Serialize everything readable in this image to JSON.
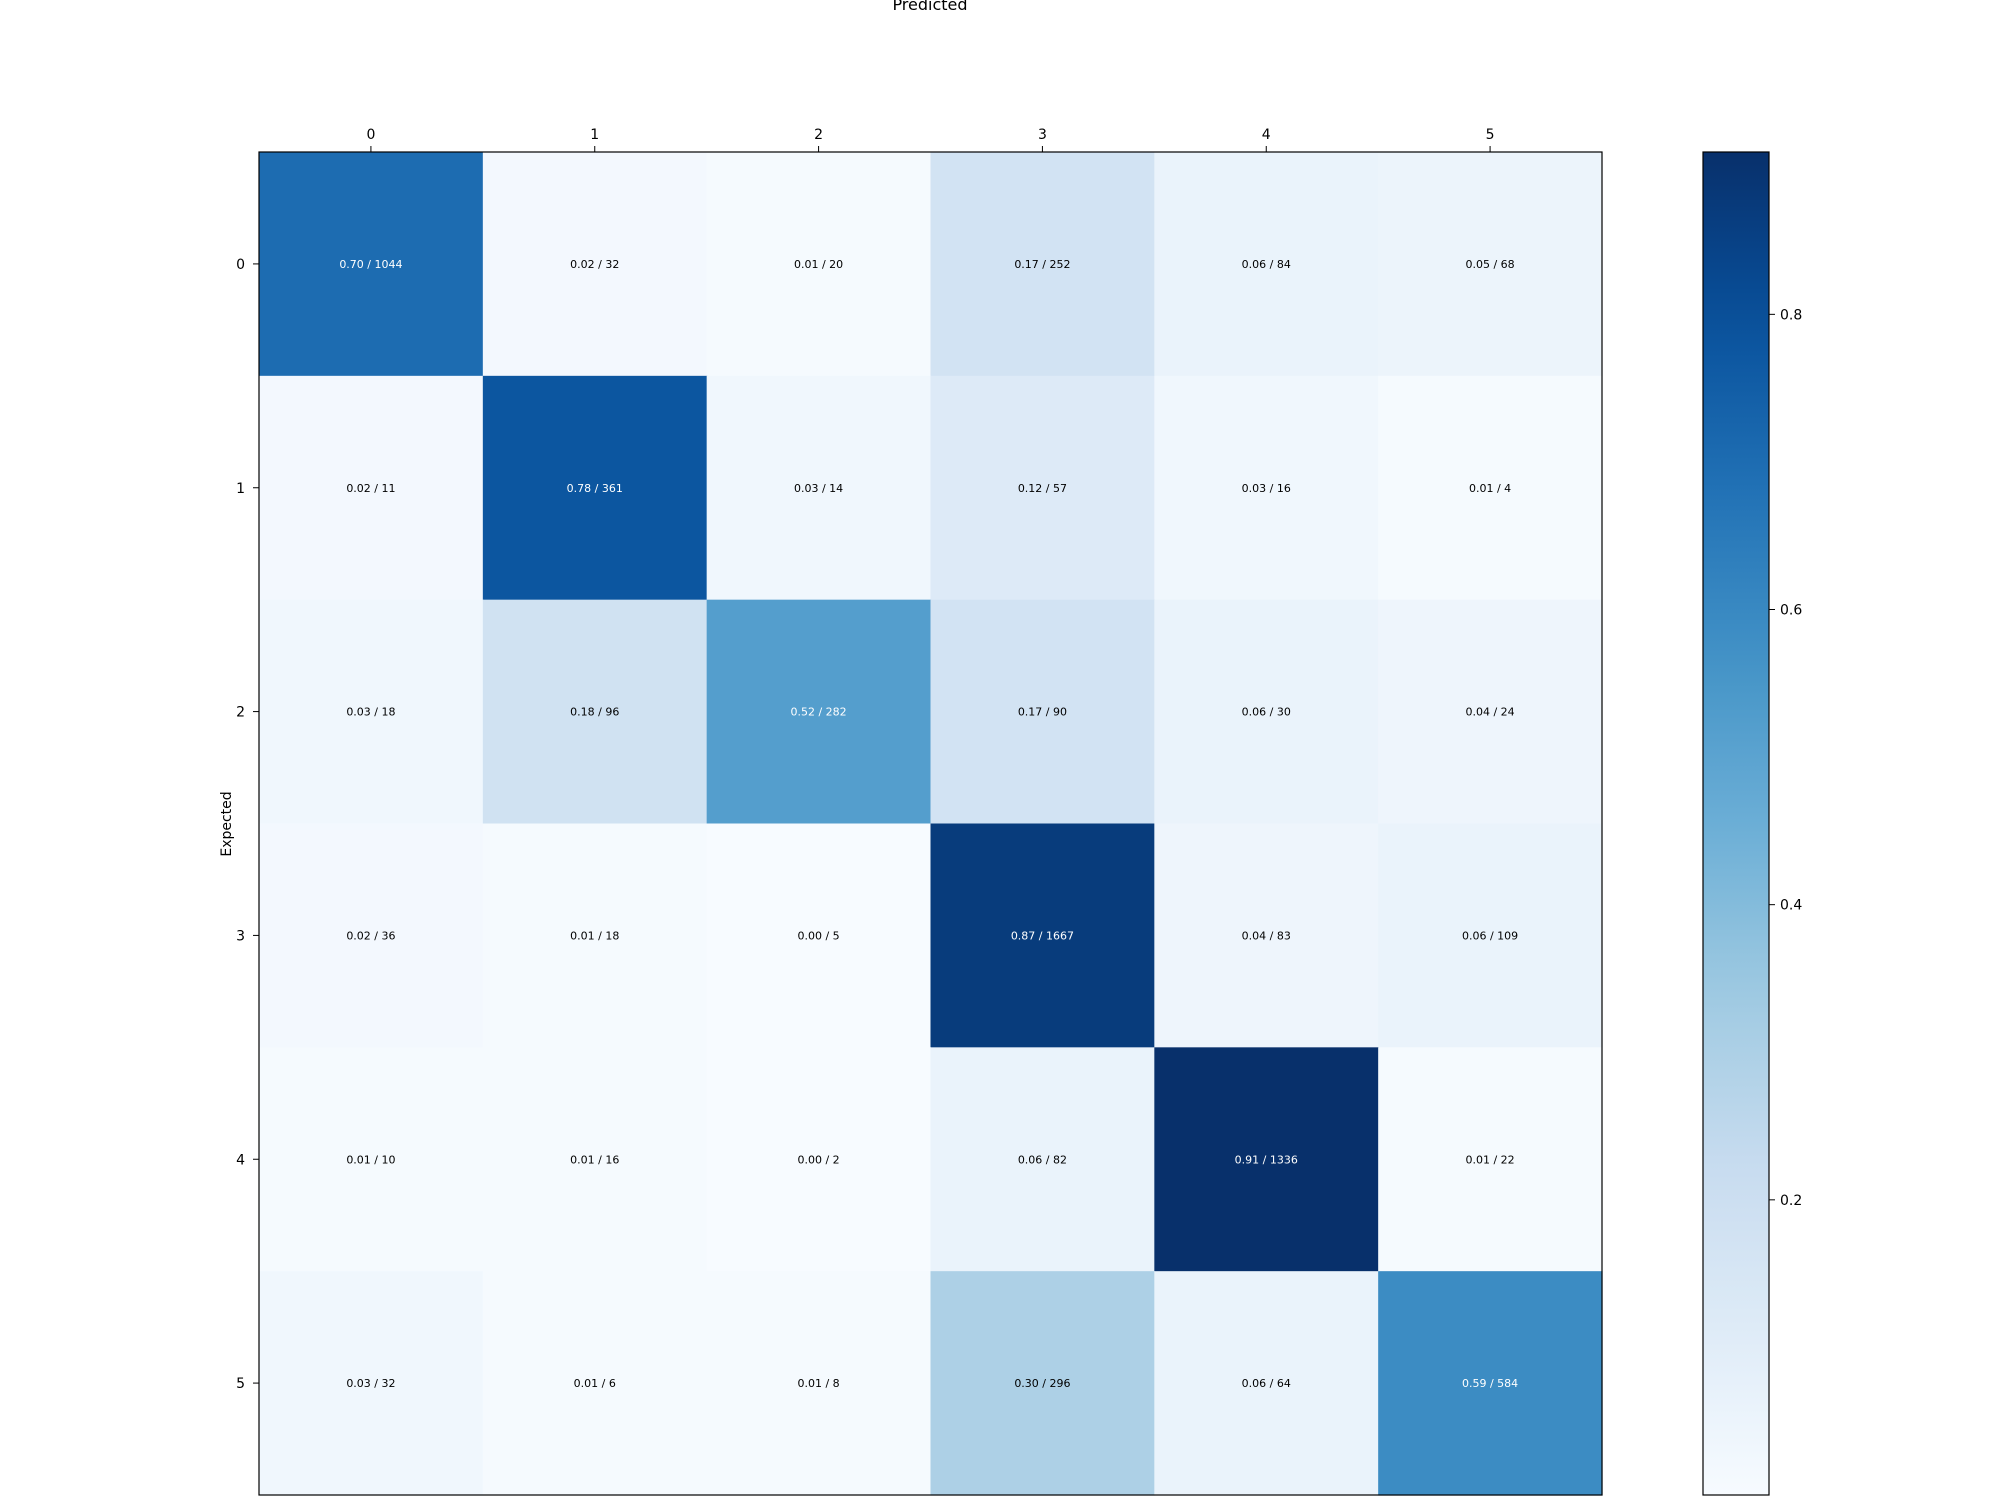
{
  "chart_data": {
    "type": "heatmap",
    "title": "",
    "xlabel": "Predicted",
    "ylabel": "Expected",
    "x_categories": [
      "0",
      "1",
      "2",
      "3",
      "4",
      "5"
    ],
    "y_categories": [
      "0",
      "1",
      "2",
      "3",
      "4",
      "5"
    ],
    "ratios": [
      [
        0.7,
        0.02,
        0.01,
        0.17,
        0.06,
        0.05
      ],
      [
        0.02,
        0.78,
        0.03,
        0.12,
        0.03,
        0.01
      ],
      [
        0.03,
        0.18,
        0.52,
        0.17,
        0.06,
        0.04
      ],
      [
        0.02,
        0.01,
        0.0,
        0.87,
        0.04,
        0.06
      ],
      [
        0.01,
        0.01,
        0.0,
        0.06,
        0.91,
        0.01
      ],
      [
        0.03,
        0.01,
        0.01,
        0.3,
        0.06,
        0.59
      ]
    ],
    "counts": [
      [
        1044,
        32,
        20,
        252,
        84,
        68
      ],
      [
        11,
        361,
        14,
        57,
        16,
        4
      ],
      [
        18,
        96,
        282,
        90,
        30,
        24
      ],
      [
        36,
        18,
        5,
        1667,
        83,
        109
      ],
      [
        10,
        16,
        2,
        82,
        1336,
        22
      ],
      [
        32,
        6,
        8,
        296,
        64,
        584
      ]
    ],
    "cell_labels": [
      [
        "0.70 / 1044",
        "0.02 / 32",
        "0.01 / 20",
        "0.17 / 252",
        "0.06 / 84",
        "0.05 / 68"
      ],
      [
        "0.02 / 11",
        "0.78 / 361",
        "0.03 / 14",
        "0.12 / 57",
        "0.03 / 16",
        "0.01 / 4"
      ],
      [
        "0.03 / 18",
        "0.18 / 96",
        "0.52 / 282",
        "0.17 / 90",
        "0.06 / 30",
        "0.04 / 24"
      ],
      [
        "0.02 / 36",
        "0.01 / 18",
        "0.00 / 5",
        "0.87 / 1667",
        "0.04 / 83",
        "0.06 / 109"
      ],
      [
        "0.01 / 10",
        "0.01 / 16",
        "0.00 / 2",
        "0.06 / 82",
        "0.91 / 1336",
        "0.01 / 22"
      ],
      [
        "0.03 / 32",
        "0.01 / 6",
        "0.01 / 8",
        "0.30 / 296",
        "0.06 / 64",
        "0.59 / 584"
      ]
    ],
    "colormap": "Blues",
    "colorbar": {
      "range": [
        0.0,
        0.91
      ],
      "ticks": [
        0.2,
        0.4,
        0.6,
        0.8
      ],
      "tick_labels": [
        "0.2",
        "0.4",
        "0.6",
        "0.8"
      ]
    },
    "grid": false,
    "xaxis_position": "top"
  }
}
